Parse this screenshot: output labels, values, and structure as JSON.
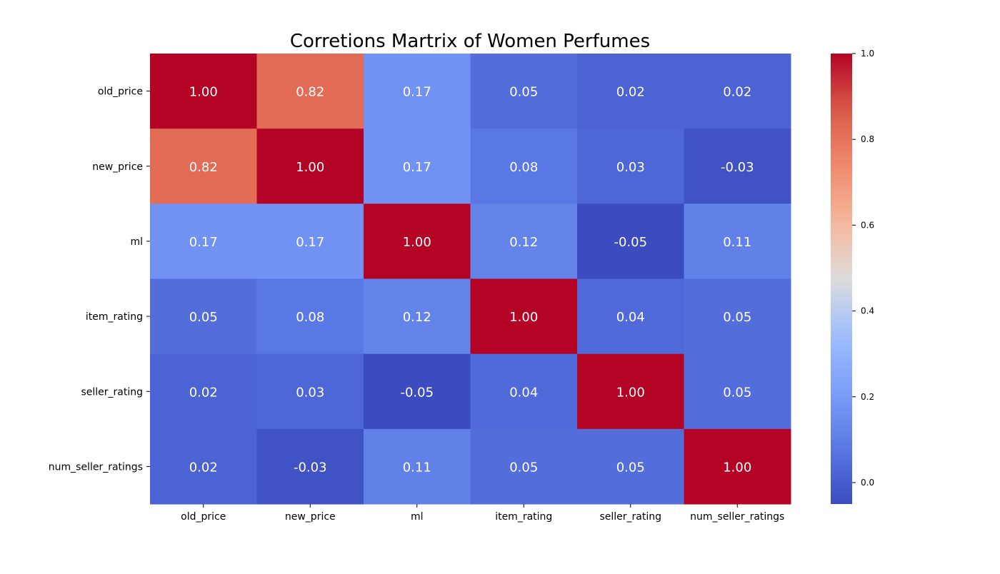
{
  "chart_data": {
    "type": "heatmap",
    "title": "Corretions Martrix of Women Perfumes",
    "xlabel": "",
    "ylabel": "",
    "row_labels": [
      "old_price",
      "new_price",
      "ml",
      "item_rating",
      "seller_rating",
      "num_seller_ratings"
    ],
    "col_labels": [
      "old_price",
      "new_price",
      "ml",
      "item_rating",
      "seller_rating",
      "num_seller_ratings"
    ],
    "values": [
      [
        1.0,
        0.82,
        0.17,
        0.05,
        0.02,
        0.02
      ],
      [
        0.82,
        1.0,
        0.17,
        0.08,
        0.03,
        -0.03
      ],
      [
        0.17,
        0.17,
        1.0,
        0.12,
        -0.05,
        0.11
      ],
      [
        0.05,
        0.08,
        0.12,
        1.0,
        0.04,
        0.05
      ],
      [
        0.02,
        0.03,
        -0.05,
        0.04,
        1.0,
        0.05
      ],
      [
        0.02,
        -0.03,
        0.11,
        0.05,
        0.05,
        1.0
      ]
    ],
    "annotation_format": "0.00",
    "colormap": "coolwarm",
    "color_range": [
      -0.05,
      1.0
    ],
    "colorbar": {
      "ticks": [
        0.0,
        0.2,
        0.4,
        0.6,
        0.8,
        1.0
      ],
      "tick_labels": [
        "0.0",
        "0.2",
        "0.4",
        "0.6",
        "0.8",
        "1.0"
      ],
      "placement": "right"
    },
    "grid": false
  }
}
